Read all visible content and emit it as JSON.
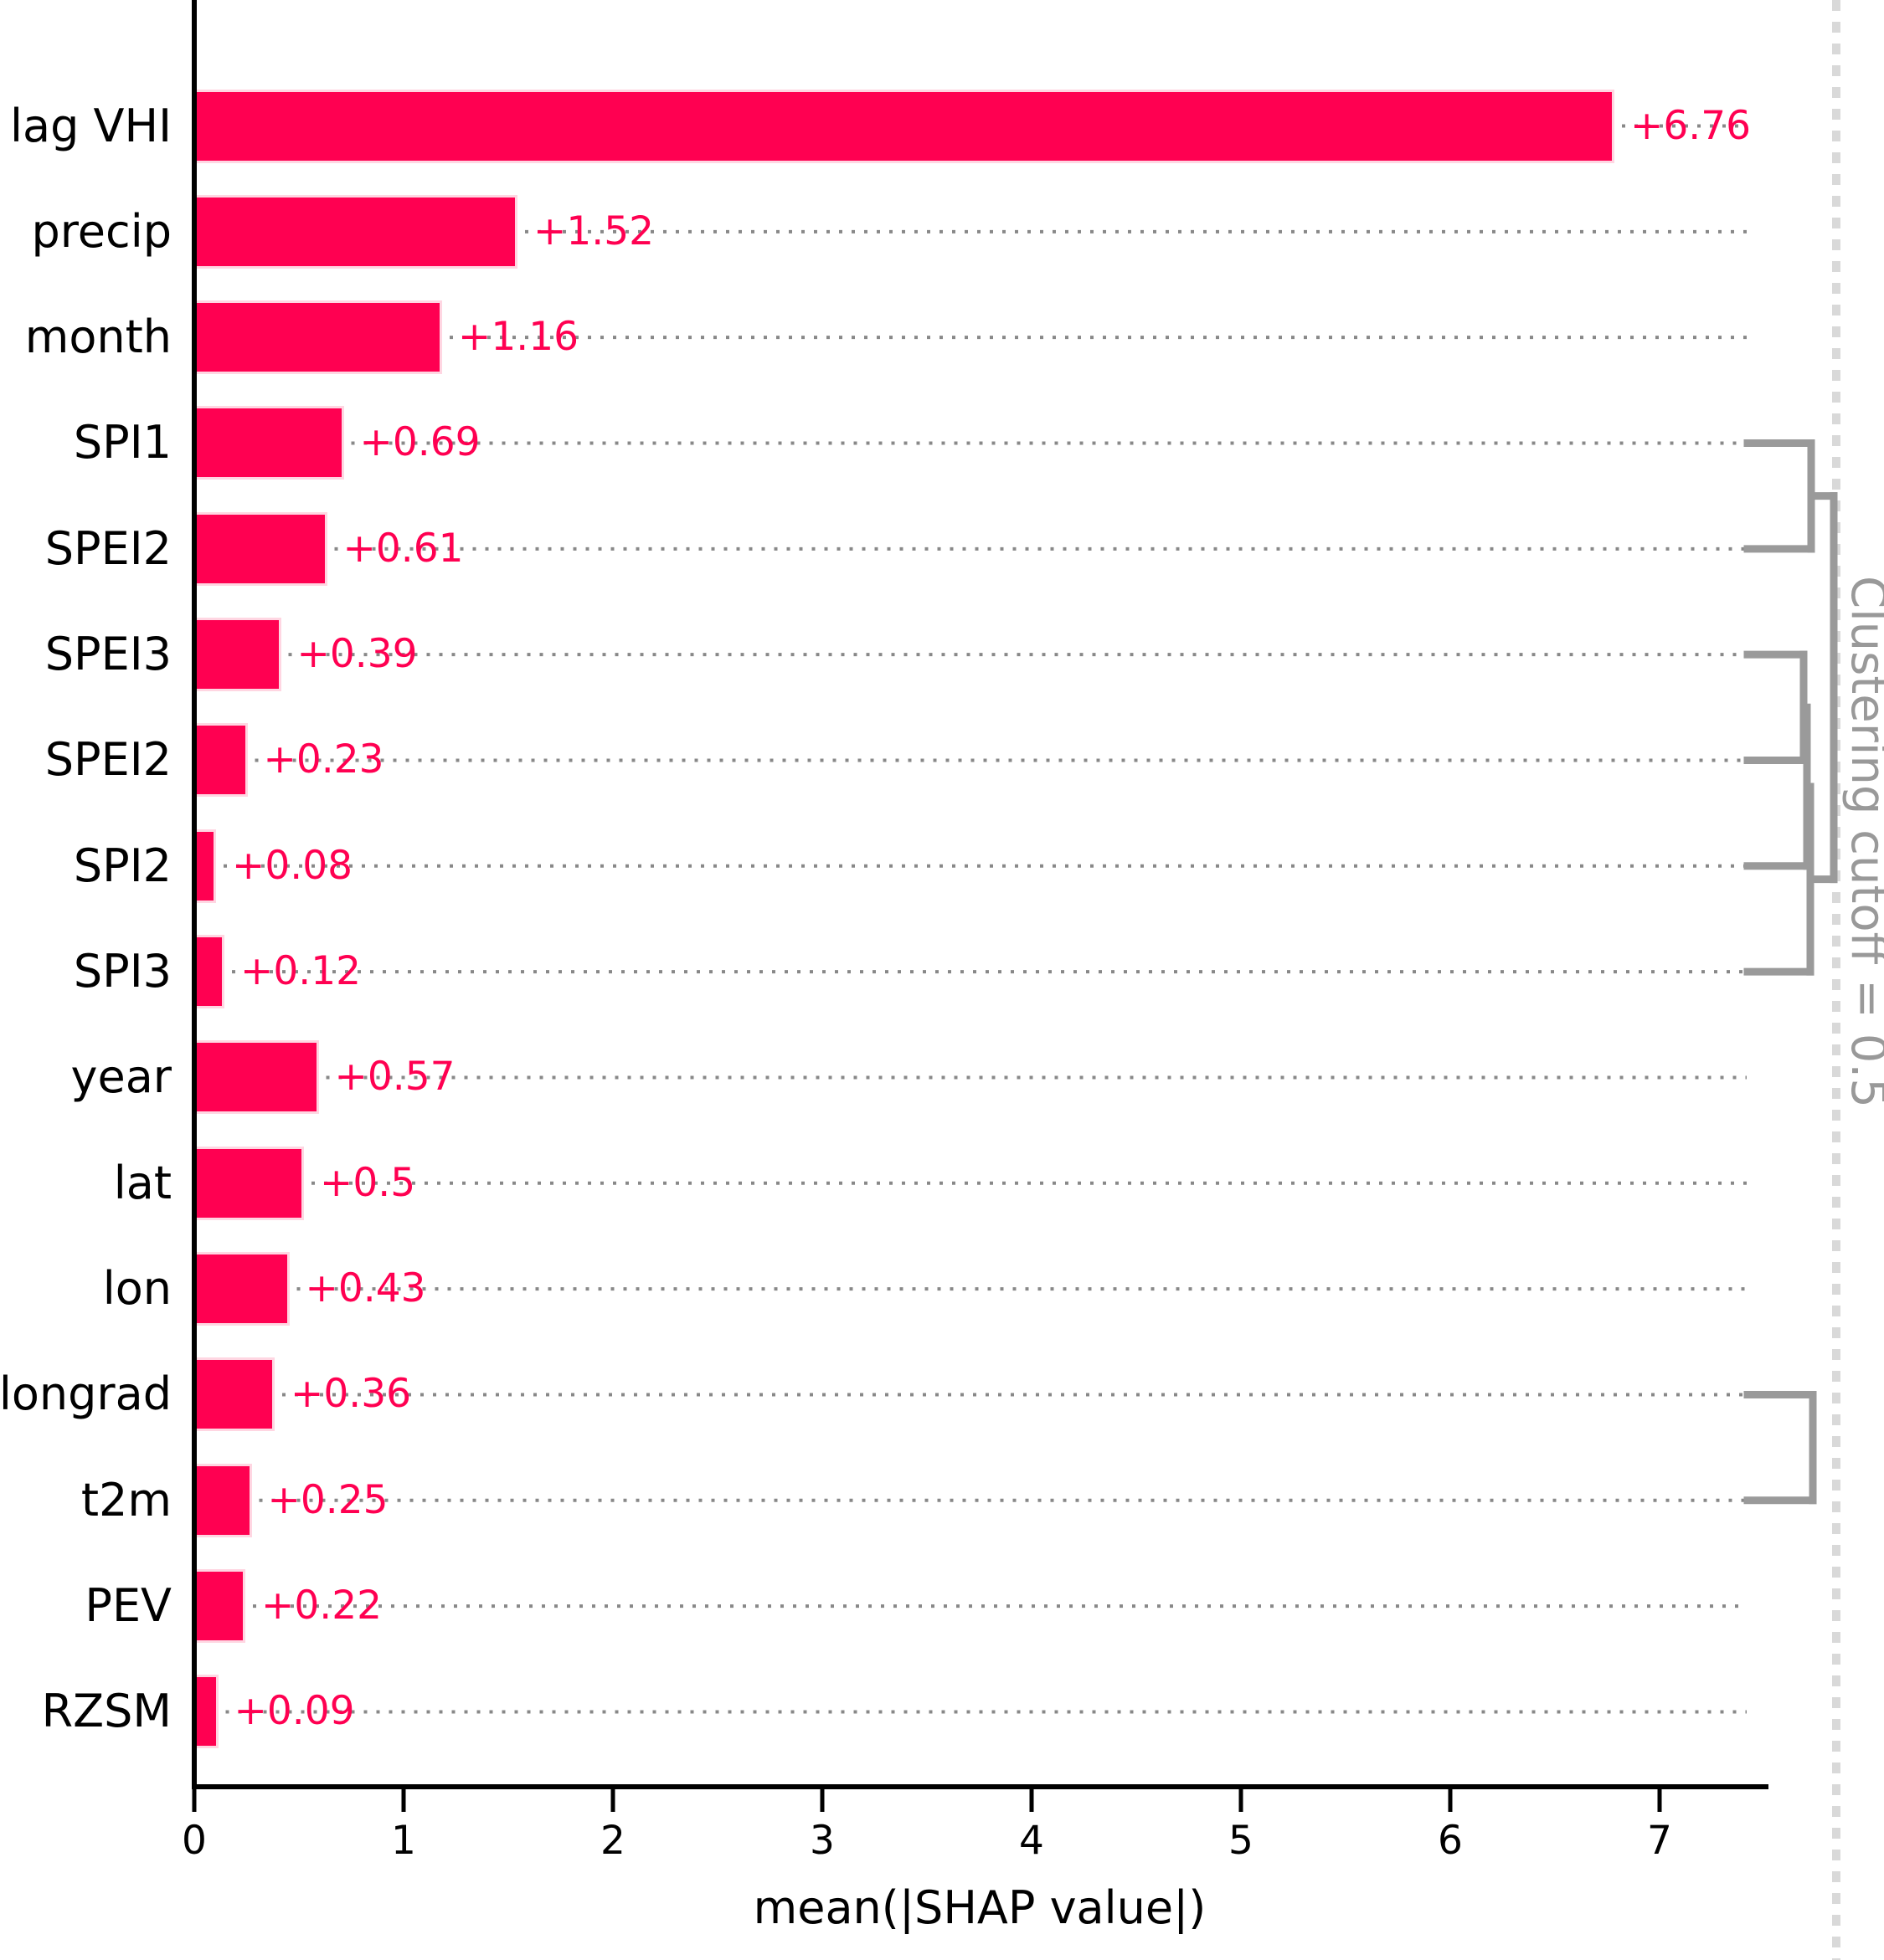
{
  "figure": {
    "background": "#ffffff",
    "axis_color": "#000000",
    "grid_dot_color": "#888888"
  },
  "chart_data": {
    "type": "bar",
    "orientation": "horizontal",
    "title": "",
    "xlabel": "mean(|SHAP value|)",
    "ylabel": "",
    "categories": [
      "lag VHI",
      "precip",
      "month",
      "SPI1",
      "SPEI2",
      "SPEI3",
      "SPEI2",
      "SPI2",
      "SPI3",
      "year",
      "lat",
      "lon",
      "longrad",
      "t2m",
      "PEV",
      "RZSM"
    ],
    "values": [
      6.76,
      1.52,
      1.16,
      0.69,
      0.61,
      0.39,
      0.23,
      0.08,
      0.12,
      0.57,
      0.5,
      0.43,
      0.36,
      0.25,
      0.22,
      0.09
    ],
    "value_labels": [
      "+6.76",
      "+1.52",
      "+1.16",
      "+0.69",
      "+0.61",
      "+0.39",
      "+0.23",
      "+0.08",
      "+0.12",
      "+0.57",
      "+0.5",
      "+0.43",
      "+0.36",
      "+0.25",
      "+0.22",
      "+0.09"
    ],
    "xticks": [
      0,
      1,
      2,
      3,
      4,
      5,
      6,
      7
    ],
    "xlim": [
      0,
      7.52
    ],
    "grid": "dotted horizontal per row",
    "legend": "none",
    "bar_color": "#ff0051",
    "bar_edge_color": "#ffd6e2",
    "value_label_color": "#ff0051"
  },
  "dendrogram": {
    "label": "Clustering cutoff = 0.5",
    "cutoff": 0.5,
    "color": "#9a9a9a",
    "label_color": "#999999",
    "cutoff_line_color": "#d9d9d9",
    "clusters": [
      [
        "SPI1",
        "SPEI2"
      ],
      [
        "SPEI3",
        "SPEI2",
        "SPI2",
        "SPI3"
      ],
      [
        "longrad",
        "t2m"
      ]
    ],
    "merges": [
      {
        "id": "m0",
        "a": 3,
        "b": 4,
        "x": 2163
      },
      {
        "id": "m1",
        "a": 5,
        "b": 6,
        "x": 2154
      },
      {
        "id": "m2",
        "a": "m1",
        "b": 7,
        "x": 2158
      },
      {
        "id": "m3",
        "a": "m2",
        "b": 8,
        "x": 2162
      },
      {
        "id": "m4",
        "a": "m0",
        "b": "m3",
        "x": 2190
      },
      {
        "id": "m5",
        "a": 12,
        "b": 13,
        "x": 2165
      }
    ],
    "leaf_x": 2087,
    "cutoff_x": 2193
  }
}
